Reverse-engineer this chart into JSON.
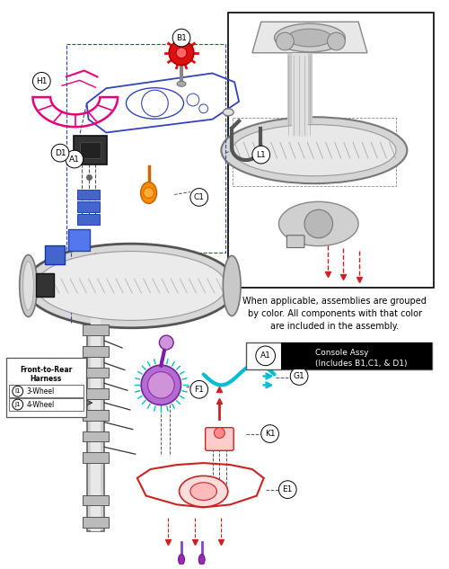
{
  "bg_color": "#ffffff",
  "fig_width": 5.0,
  "fig_height": 6.33,
  "legend_text_line1": "When applicable, assemblies are grouped",
  "legend_text_line2": "by color. All components with that color",
  "legend_text_line3": "are included in the assembly.",
  "legend_box_label_line1": "Console Assy",
  "legend_box_label_line2": "(Includes B1,C1, & D1)",
  "harness_title": "Front-to-Rear\nHarness",
  "pink_color": "#e8007a",
  "blue_color": "#3344bb",
  "orange_color": "#ff8c00",
  "cyan_color": "#00bcd4",
  "purple_color": "#9c27b0",
  "red_color": "#cc2222",
  "dark_gray": "#444444",
  "mid_gray": "#888888",
  "light_gray": "#cccccc"
}
